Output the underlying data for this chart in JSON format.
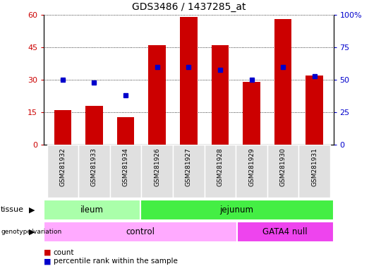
{
  "title": "GDS3486 / 1437285_at",
  "samples": [
    "GSM281932",
    "GSM281933",
    "GSM281934",
    "GSM281926",
    "GSM281927",
    "GSM281928",
    "GSM281929",
    "GSM281930",
    "GSM281931"
  ],
  "counts": [
    16,
    18,
    13,
    46,
    59,
    46,
    29,
    58,
    32
  ],
  "percentile_ranks": [
    50,
    48,
    38,
    60,
    60,
    58,
    50,
    60,
    53
  ],
  "left_ylim": [
    0,
    60
  ],
  "right_ylim": [
    0,
    100
  ],
  "left_yticks": [
    0,
    15,
    30,
    45,
    60
  ],
  "right_yticks": [
    0,
    25,
    50,
    75,
    100
  ],
  "right_yticklabels": [
    "0",
    "25",
    "50",
    "75",
    "100%"
  ],
  "bar_color": "#cc0000",
  "dot_color": "#0000cc",
  "tissue_groups": [
    {
      "label": "ileum",
      "start": 0,
      "end": 3,
      "color": "#aaffaa"
    },
    {
      "label": "jejunum",
      "start": 3,
      "end": 9,
      "color": "#44ee44"
    }
  ],
  "genotype_groups": [
    {
      "label": "control",
      "start": 0,
      "end": 6,
      "color": "#ffaaff"
    },
    {
      "label": "GATA4 null",
      "start": 6,
      "end": 9,
      "color": "#ee44ee"
    }
  ],
  "title_fontsize": 10,
  "legend_items": [
    {
      "label": "count",
      "color": "#cc0000"
    },
    {
      "label": "percentile rank within the sample",
      "color": "#0000cc"
    }
  ],
  "bg_color": "#ffffff",
  "tick_label_color_left": "#cc0000",
  "tick_label_color_right": "#0000cc",
  "xticklabel_bg": "#e0e0e0"
}
